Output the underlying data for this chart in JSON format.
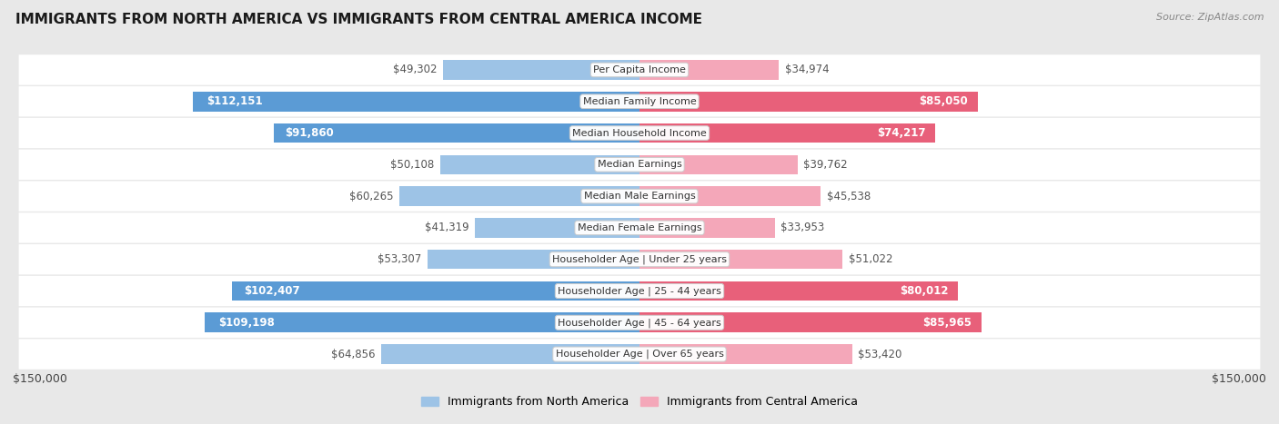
{
  "title": "IMMIGRANTS FROM NORTH AMERICA VS IMMIGRANTS FROM CENTRAL AMERICA INCOME",
  "source": "Source: ZipAtlas.com",
  "categories": [
    "Per Capita Income",
    "Median Family Income",
    "Median Household Income",
    "Median Earnings",
    "Median Male Earnings",
    "Median Female Earnings",
    "Householder Age | Under 25 years",
    "Householder Age | 25 - 44 years",
    "Householder Age | 45 - 64 years",
    "Householder Age | Over 65 years"
  ],
  "north_america_values": [
    49302,
    112151,
    91860,
    50108,
    60265,
    41319,
    53307,
    102407,
    109198,
    64856
  ],
  "central_america_values": [
    34974,
    85050,
    74217,
    39762,
    45538,
    33953,
    51022,
    80012,
    85965,
    53420
  ],
  "north_america_labels": [
    "$49,302",
    "$112,151",
    "$91,860",
    "$50,108",
    "$60,265",
    "$41,319",
    "$53,307",
    "$102,407",
    "$109,198",
    "$64,856"
  ],
  "central_america_labels": [
    "$34,974",
    "$85,050",
    "$74,217",
    "$39,762",
    "$45,538",
    "$33,953",
    "$51,022",
    "$80,012",
    "$85,965",
    "$53,420"
  ],
  "north_america_color_high": "#5b9bd5",
  "north_america_color_low": "#9dc3e6",
  "central_america_color_high": "#e8607a",
  "central_america_color_low": "#f4a7b9",
  "inside_label_threshold": 70000,
  "max_value": 150000,
  "bg_color": "#e8e8e8",
  "row_bg_color": "#ffffff",
  "bar_height": 0.62,
  "legend_label_north": "Immigrants from North America",
  "legend_label_central": "Immigrants from Central America",
  "xlabel_left": "$150,000",
  "xlabel_right": "$150,000",
  "title_fontsize": 11,
  "label_fontsize": 8.5,
  "cat_fontsize": 8.0
}
